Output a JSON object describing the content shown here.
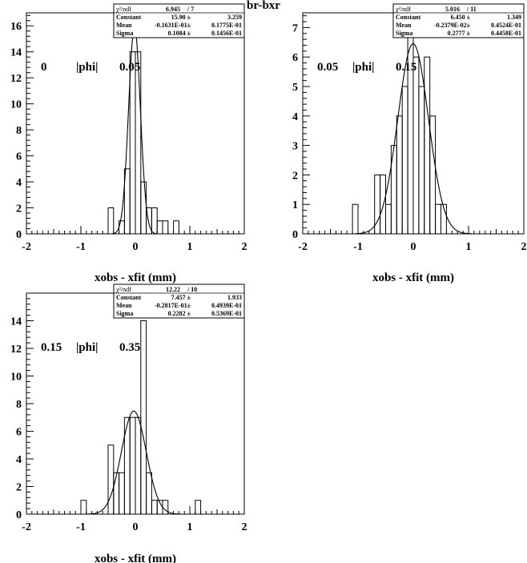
{
  "figure_title": "br-bxr",
  "chart_data": [
    {
      "type": "bar",
      "subtype": "histogram-with-gaussian-fit",
      "panel": "top-left",
      "xlabel": "xobs - xfit (mm)",
      "ylabel": "",
      "xlim": [
        -2,
        2
      ],
      "ylim": [
        0,
        17
      ],
      "x_ticks": [
        "-2",
        "-1",
        "0",
        "1",
        "2"
      ],
      "y_ticks": [
        "0",
        "2",
        "4",
        "6",
        "8",
        "10",
        "12",
        "14",
        "16"
      ],
      "annotation": {
        "lo": "0",
        "var": "|phi|",
        "hi": "0.05"
      },
      "bin_width": 0.1,
      "bins": [
        {
          "x0": -0.5,
          "y": 2
        },
        {
          "x0": -0.4,
          "y": 0
        },
        {
          "x0": -0.3,
          "y": 1
        },
        {
          "x0": -0.2,
          "y": 5
        },
        {
          "x0": -0.1,
          "y": 14
        },
        {
          "x0": 0.0,
          "y": 14
        },
        {
          "x0": 0.1,
          "y": 4
        },
        {
          "x0": 0.2,
          "y": 2
        },
        {
          "x0": 0.3,
          "y": 2
        },
        {
          "x0": 0.4,
          "y": 1
        },
        {
          "x0": 0.5,
          "y": 1
        },
        {
          "x0": 0.6,
          "y": 0
        },
        {
          "x0": 0.7,
          "y": 1
        }
      ],
      "fit": {
        "constant": 15.9,
        "mean": -0.01631,
        "sigma": 0.1084
      },
      "stats": [
        [
          "χ²/ndf",
          "6.945",
          "/  7"
        ],
        [
          "Constant",
          "15.90 ±",
          "3.259"
        ],
        [
          "Mean",
          "-0.1631E-01±",
          "0.1775E-01"
        ],
        [
          "Sigma",
          "0.1084 ±",
          "0.1456E-01"
        ]
      ]
    },
    {
      "type": "bar",
      "subtype": "histogram-with-gaussian-fit",
      "panel": "top-right",
      "xlabel": "xobs - xfit (mm)",
      "ylabel": "",
      "xlim": [
        -2,
        2
      ],
      "ylim": [
        0,
        7.5
      ],
      "x_ticks": [
        "-2",
        "-1",
        "0",
        "1",
        "2"
      ],
      "y_ticks": [
        "0",
        "1",
        "2",
        "3",
        "4",
        "5",
        "6",
        "7"
      ],
      "annotation": {
        "lo": "0.05",
        "var": "|phi|",
        "hi": "0.15"
      },
      "bin_width": 0.1,
      "bins": [
        {
          "x0": -1.1,
          "y": 1
        },
        {
          "x0": -1.0,
          "y": 0
        },
        {
          "x0": -0.9,
          "y": 0
        },
        {
          "x0": -0.8,
          "y": 0
        },
        {
          "x0": -0.7,
          "y": 2
        },
        {
          "x0": -0.6,
          "y": 2
        },
        {
          "x0": -0.5,
          "y": 1
        },
        {
          "x0": -0.4,
          "y": 3
        },
        {
          "x0": -0.3,
          "y": 4
        },
        {
          "x0": -0.2,
          "y": 5
        },
        {
          "x0": -0.1,
          "y": 7
        },
        {
          "x0": 0.0,
          "y": 6
        },
        {
          "x0": 0.1,
          "y": 5
        },
        {
          "x0": 0.2,
          "y": 6
        },
        {
          "x0": 0.3,
          "y": 4
        },
        {
          "x0": 0.4,
          "y": 1
        },
        {
          "x0": 0.5,
          "y": 1
        }
      ],
      "fit": {
        "constant": 6.45,
        "mean": -0.002379,
        "sigma": 0.2777
      },
      "stats": [
        [
          "χ²/ndf",
          "5.016",
          "/  11"
        ],
        [
          "Constant",
          "6.450 ±",
          "1.349"
        ],
        [
          "Mean",
          "-0.2379E-02±",
          "0.4524E-01"
        ],
        [
          "Sigma",
          "0.2777 ±",
          "0.4458E-01"
        ]
      ]
    },
    {
      "type": "bar",
      "subtype": "histogram-with-gaussian-fit",
      "panel": "bottom-left",
      "xlabel": "xobs - xfit (mm)",
      "ylabel": "",
      "xlim": [
        -2,
        2
      ],
      "ylim": [
        0,
        16
      ],
      "x_ticks": [
        "-2",
        "-1",
        "0",
        "1",
        "2"
      ],
      "y_ticks": [
        "0",
        "2",
        "4",
        "6",
        "8",
        "10",
        "12",
        "14"
      ],
      "annotation": {
        "lo": "0.15",
        "var": "|phi|",
        "hi": "0.35"
      },
      "bin_width": 0.1,
      "bins": [
        {
          "x0": -1.0,
          "y": 1
        },
        {
          "x0": -0.9,
          "y": 0
        },
        {
          "x0": -0.8,
          "y": 0
        },
        {
          "x0": -0.7,
          "y": 0
        },
        {
          "x0": -0.6,
          "y": 0
        },
        {
          "x0": -0.5,
          "y": 5
        },
        {
          "x0": -0.4,
          "y": 3
        },
        {
          "x0": -0.3,
          "y": 3
        },
        {
          "x0": -0.2,
          "y": 7
        },
        {
          "x0": -0.1,
          "y": 7
        },
        {
          "x0": 0.0,
          "y": 7
        },
        {
          "x0": 0.1,
          "y": 14
        },
        {
          "x0": 0.2,
          "y": 3
        },
        {
          "x0": 0.3,
          "y": 1
        },
        {
          "x0": 0.4,
          "y": 1
        },
        {
          "x0": 0.5,
          "y": 1
        },
        {
          "x0": 0.6,
          "y": 0
        },
        {
          "x0": 0.7,
          "y": 0
        },
        {
          "x0": 0.8,
          "y": 0
        },
        {
          "x0": 0.9,
          "y": 0
        },
        {
          "x0": 1.0,
          "y": 0
        },
        {
          "x0": 1.1,
          "y": 1
        }
      ],
      "fit": {
        "constant": 7.457,
        "mean": -0.02817,
        "sigma": 0.2282
      },
      "stats": [
        [
          "χ²/ndf",
          "12.22",
          "/  10"
        ],
        [
          "Constant",
          "7.457 ±",
          "1.933"
        ],
        [
          "Mean",
          "-0.2817E-01±",
          "0.4939E-01"
        ],
        [
          "Sigma",
          "0.2282 ±",
          "0.5369E-01"
        ]
      ]
    }
  ]
}
